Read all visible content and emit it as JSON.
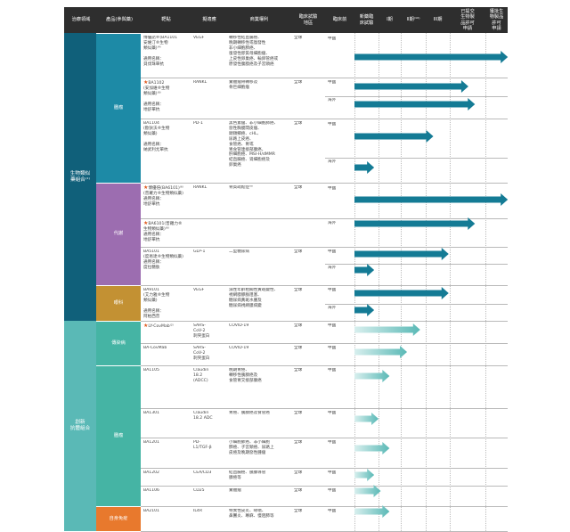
{
  "header": {
    "columns": [
      "治療領域",
      "產品(參與藥)",
      "靶點",
      "擬適應",
      "商業權利",
      "臨床試驗\n地區",
      "臨床前",
      "新藥臨\n床試驗",
      "I期",
      "II期⁽¹⁰⁾",
      "III期",
      "已提交\n生物製\n品許可\n申請",
      "獲批生\n物製品\n許可\n申請"
    ]
  },
  "categories": [
    {
      "label": "生物類似\n藥組合⁽¹⁾",
      "color": "#10607a"
    },
    {
      "label": "創新\n抗體組合",
      "color": "#5ab9b6"
    }
  ],
  "subcategories": [
    {
      "label": "腫瘤",
      "color": "#1d8aa6"
    },
    {
      "label": "代謝",
      "color": "#9c6db0"
    },
    {
      "label": "眼科",
      "color": "#c39133"
    },
    {
      "label": "傳染病",
      "color": "#45b4a4"
    },
    {
      "label": "腫瘤",
      "color": "#45b4a4"
    },
    {
      "label": "自身免疫",
      "color": "#e8792d"
    }
  ],
  "rows": [
    {
      "product": "博優諾®(BA1101\n安維汀®生物\n類似藥)⁽⁴⁾\n\n通用名稱：\n貝伐珠單抗",
      "target": "VEGF",
      "indication": "轉移性結直腸癌、\n晚期轉移性或復發性\n非小細胞肺癌、\n復發性膠質母細胞瘤、\n上皮性卵巢癌、輸卵管癌或\n原發性腹膜癌及子宮頸癌",
      "rights": "全球",
      "regions": [
        {
          "name": "中國",
          "stage": 7.0
        }
      ]
    },
    {
      "product": "BA1102\n(安加維®生物\n類似藥)⁽⁶⁾\n\n通用名稱：\n地舒單抗",
      "star": true,
      "target": "RANKL",
      "indication": "實體瘤骨轉移及\n骨巨細胞瘤",
      "rights": "全球",
      "regions": [
        {
          "name": "中國",
          "stage": 5.2
        },
        {
          "name": "海外",
          "stage": 5.5
        }
      ]
    },
    {
      "product": "BA1104\n(歐狄沃®生物\n類似藥)\n\n通用名稱：\n納武利尤單抗",
      "target": "PD-1",
      "indication": "黑色素瘤、非小細胞肺癌、\n惡性胸膜間皮瘤、\n頭頸鱗癌、cHL、\n尿路上皮癌、\n食管癌、胃或\n胃食管連接部腺癌、\n肝細胞癌、MSI-H/dMMR\n結直腸癌、肾細胞癌及\n卵巢癌",
      "rights": "全球",
      "regions": [
        {
          "name": "中國",
          "stage": 3.6
        },
        {
          "name": "海外",
          "stage": 0.9
        }
      ]
    },
    {
      "product": "博優倍(BA6101)⁽⁶⁾\n(普羅力®生物類似藥)\n通用名稱：\n地舒單抗",
      "star": true,
      "target": "RANKL",
      "indication": "骨質疏鬆症⁽⁸⁾",
      "rights": "全球",
      "regions": [
        {
          "name": "中國",
          "stage": 7.0
        }
      ]
    },
    {
      "product": "BA6101(普羅力®\n生物類似藥)⁽⁶⁾\n通用名稱：\n地舒單抗",
      "star": true,
      "target": "",
      "indication": "",
      "rights": "",
      "regions": [
        {
          "name": "海外",
          "stage": 5.5
        }
      ]
    },
    {
      "product": "BA5101\n(度易達®生物類似藥)\n通用名稱：\n度拉糖肽",
      "target": "GLP-1",
      "indication": "二型糖尿病",
      "rights": "全球",
      "regions": [
        {
          "name": "中國",
          "stage": 4.3
        },
        {
          "name": "海外",
          "stage": 0.9
        }
      ]
    },
    {
      "product": "BA9101\n(艾力雅®生物\n類似藥)\n\n通用名稱：\n阿柏西普",
      "target": "VEGF",
      "indication": "濕性年齡相關性黃斑變性、\n視網膜靜脈阻塞、\n糖尿病黃斑水腫及\n糖尿病視網膜病變",
      "rights": "全球",
      "regions": [
        {
          "name": "中國",
          "stage": 4.3
        },
        {
          "name": "海外",
          "stage": 0.9
        }
      ]
    },
    {
      "product": "LY-CovMab⁽²⁾",
      "star": true,
      "target": "SARS-\nCoV-2\n刺突蛋白",
      "indication": "COVID-19",
      "rights": "全球",
      "regions": [
        {
          "name": "中國",
          "stage": 3.0
        }
      ]
    },
    {
      "product": "BA-CovMab",
      "target": "SARS-\nCoV-2\n刺突蛋白",
      "indication": "COVID-19",
      "rights": "全球",
      "regions": [
        {
          "name": "中國",
          "stage": 2.4
        }
      ]
    },
    {
      "product": "BA1105",
      "target": "Claudin\n18.2\n(ADCC)",
      "indication": "晚期胃癌、\n轉移性胰腺癌及\n食管胃交接部腺癌",
      "rights": "全球",
      "regions": [
        {
          "name": "中國",
          "stage": 1.6
        }
      ]
    },
    {
      "product": "BA1301",
      "target": "Claudin\n18.2 ADC",
      "indication": "胃癌、胰腺癌及食管癌",
      "rights": "全球",
      "regions": [
        {
          "name": "中國",
          "stage": 1.1
        }
      ]
    },
    {
      "product": "BA1201",
      "target": "PD-\nL1/TGF-β",
      "indication": "小細胞肺癌、非小細胞\n肺癌、子宮頸癌、尿路上\n皮癌及晚期惡性腫瘤",
      "rights": "全球",
      "regions": [
        {
          "name": "中國",
          "stage": 1.6
        }
      ]
    },
    {
      "product": "BA1202",
      "target": "CEA/CD3",
      "indication": "結直腸癌、胰腺導管\n腺癌等",
      "rights": "全球",
      "regions": [
        {
          "name": "中國",
          "stage": 0.9
        }
      ]
    },
    {
      "product": "BA1106",
      "target": "CD25",
      "indication": "實體瘤",
      "rights": "全球",
      "regions": [
        {
          "name": "中國",
          "stage": 1.2
        }
      ]
    },
    {
      "product": "BA2101",
      "target": "IL4R",
      "indication": "特異性皮炎、哮喘、\n鼻竇炎、蕁麻、慢阻肺等",
      "rights": "全球",
      "regions": [
        {
          "name": "中國",
          "stage": 1.6
        }
      ]
    }
  ],
  "colors": {
    "header_bg": "#2e2e2e",
    "arrow_biosimilar": "#147b95",
    "arrow_innovative": "#5ab9b6",
    "star": "#e05a1f"
  }
}
